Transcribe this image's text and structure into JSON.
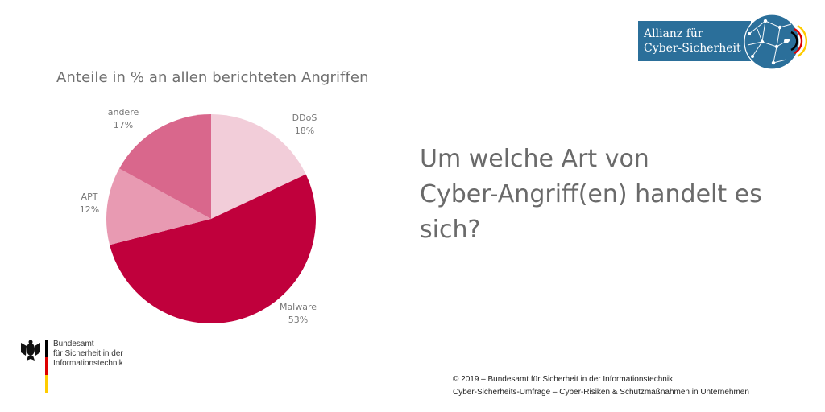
{
  "branding": {
    "alliance_logo_line1": "Allianz für",
    "alliance_logo_line2": "Cyber-Sicherheit",
    "agency_name_lines": [
      "Bundesamt",
      "für Sicherheit in der",
      "Informationstechnik"
    ],
    "colors": {
      "alliance_blue": "#2b6f9a",
      "flag_black": "#000000",
      "flag_red": "#dd0000",
      "flag_gold": "#ffcc00"
    }
  },
  "question": {
    "lines": [
      "Um welche Art von",
      "Cyber-Angriff(en) handelt es",
      "sich?"
    ]
  },
  "footer": {
    "line1": "© 2019 – Bundesamt für Sicherheit in der Informationstechnik",
    "line2": "Cyber-Sicherheits-Umfrage – Cyber-Risiken & Schutzmaßnahmen in Unternehmen"
  },
  "chart_data": {
    "type": "pie",
    "title": "Anteile in % an allen berichteten Angriffen",
    "slices": [
      {
        "label": "DDoS",
        "value": 18,
        "value_label": "18%",
        "color": "#f2cdd9"
      },
      {
        "label": "Malware",
        "value": 53,
        "value_label": "53%",
        "color": "#c0003c"
      },
      {
        "label": "APT",
        "value": 12,
        "value_label": "12%",
        "color": "#e89ab2"
      },
      {
        "label": "andere",
        "value": 17,
        "value_label": "17%",
        "color": "#d9678c"
      }
    ]
  }
}
